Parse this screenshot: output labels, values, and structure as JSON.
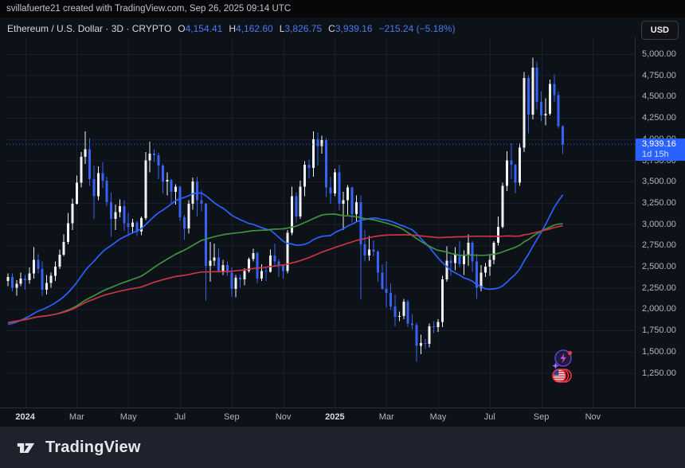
{
  "attribution": {
    "text": "svillafuerte21 created with TradingView.com, Sep 26, 2025 09:14 UTC"
  },
  "header": {
    "symbol_title": "Ethereum / U.S. Dollar · 3D · CRYPTO",
    "ohlc": [
      {
        "label": "O",
        "value": "4,154.41"
      },
      {
        "label": "H",
        "value": "4,162.60"
      },
      {
        "label": "L",
        "value": "3,826.75"
      },
      {
        "label": "C",
        "value": "3,939.16"
      }
    ],
    "change": "−215.24 (−5.18%)",
    "currency_button": "USD"
  },
  "price_scale": {
    "current_price_label": "3,939.16",
    "countdown": "1d 15h"
  },
  "footer": {
    "brand": "TradingView"
  },
  "colors": {
    "accent_blue": "#2962ff",
    "candle_up": "#f2f3f5",
    "candle_down": "#3763f4",
    "ma_fast": "#2962ff",
    "ma_mid": "#3f9142",
    "ma_slow": "#cc3344",
    "badge_bg": "#2962ff",
    "grid": "#1a1f2b",
    "axis_border": "#2a2e39"
  },
  "chart_data": {
    "type": "candlestick",
    "title": "Ethereum / U.S. Dollar",
    "timeframe": "3D",
    "exchange": "CRYPTO",
    "current_price": 3939.16,
    "y_axis": {
      "min": 1250,
      "max": 5000,
      "step": 250,
      "ticks": [
        {
          "v": 5000,
          "label": "5,000.00"
        },
        {
          "v": 4750,
          "label": "4,750.00"
        },
        {
          "v": 4500,
          "label": "4,500.00"
        },
        {
          "v": 4250,
          "label": "4,250.00"
        },
        {
          "v": 4000,
          "label": "4,000.00"
        },
        {
          "v": 3750,
          "label": "3,750.00"
        },
        {
          "v": 3500,
          "label": "3,500.00"
        },
        {
          "v": 3250,
          "label": "3,250.00"
        },
        {
          "v": 3000,
          "label": "3,000.00"
        },
        {
          "v": 2750,
          "label": "2,750.00"
        },
        {
          "v": 2500,
          "label": "2,500.00"
        },
        {
          "v": 2250,
          "label": "2,250.00"
        },
        {
          "v": 2000,
          "label": "2,000.00"
        },
        {
          "v": 1750,
          "label": "1,750.00"
        },
        {
          "v": 1500,
          "label": "1,500.00"
        },
        {
          "v": 1250,
          "label": "1,250.00"
        }
      ]
    },
    "x_axis": {
      "ticks": [
        {
          "label": "2024",
          "index": 4,
          "bold": true
        },
        {
          "label": "Mar",
          "index": 16
        },
        {
          "label": "May",
          "index": 28
        },
        {
          "label": "Jul",
          "index": 40
        },
        {
          "label": "Sep",
          "index": 52
        },
        {
          "label": "Nov",
          "index": 64
        },
        {
          "label": "2025",
          "index": 76,
          "bold": true
        },
        {
          "label": "Mar",
          "index": 88
        },
        {
          "label": "May",
          "index": 100
        },
        {
          "label": "Jul",
          "index": 112
        },
        {
          "label": "Sep",
          "index": 124
        },
        {
          "label": "Nov",
          "index": 136
        }
      ]
    },
    "indicators": [
      {
        "name": "ma-fast",
        "period": 30,
        "color": "#2962ff"
      },
      {
        "name": "ma-mid",
        "period": 60,
        "color": "#3f9142"
      },
      {
        "name": "ma-slow",
        "period": 100,
        "color": "#cc3344"
      }
    ],
    "ma_seed": [
      1800,
      1830,
      1850,
      1870,
      1860,
      1840,
      1850,
      1870,
      1890,
      1900,
      1910,
      1900,
      1880,
      1860,
      1900,
      1920,
      1930,
      1900,
      1880,
      1870,
      1840,
      1700,
      1660,
      1650,
      1680,
      1650,
      1630,
      1620,
      1630,
      1600,
      1590,
      1650,
      1560,
      1550,
      1600,
      1680,
      1750,
      1800,
      1850,
      1880,
      1900,
      2020,
      2050,
      2030,
      2100,
      2200,
      2250,
      2230
    ],
    "candles": [
      [
        2330,
        2420,
        2270,
        2380
      ],
      [
        2380,
        2420,
        2210,
        2250
      ],
      [
        2250,
        2340,
        2160,
        2300
      ],
      [
        2300,
        2430,
        2270,
        2360
      ],
      [
        2360,
        2400,
        2230,
        2340
      ],
      [
        2340,
        2490,
        2300,
        2420
      ],
      [
        2420,
        2730,
        2360,
        2580
      ],
      [
        2580,
        2650,
        2420,
        2470
      ],
      [
        2470,
        2560,
        2160,
        2230
      ],
      [
        2230,
        2400,
        2170,
        2310
      ],
      [
        2310,
        2430,
        2250,
        2390
      ],
      [
        2390,
        2560,
        2330,
        2500
      ],
      [
        2500,
        2700,
        2470,
        2640
      ],
      [
        2640,
        2880,
        2620,
        2790
      ],
      [
        2790,
        3130,
        2760,
        3010
      ],
      [
        3010,
        3300,
        2930,
        3240
      ],
      [
        3240,
        3570,
        3230,
        3490
      ],
      [
        3490,
        3850,
        3430,
        3790
      ],
      [
        3790,
        4090,
        3710,
        3880
      ],
      [
        3880,
        4010,
        3450,
        3530
      ],
      [
        3530,
        3690,
        3060,
        3330
      ],
      [
        3330,
        3680,
        3280,
        3600
      ],
      [
        3600,
        3730,
        3420,
        3510
      ],
      [
        3510,
        3560,
        3210,
        3260
      ],
      [
        3260,
        3370,
        2850,
        3060
      ],
      [
        3060,
        3230,
        2930,
        3140
      ],
      [
        3140,
        3290,
        3080,
        3210
      ],
      [
        3210,
        3280,
        2920,
        3010
      ],
      [
        3010,
        3130,
        2860,
        2970
      ],
      [
        2970,
        3060,
        2890,
        3020
      ],
      [
        3020,
        3040,
        2860,
        2910
      ],
      [
        2910,
        3090,
        2870,
        3070
      ],
      [
        3070,
        3850,
        3050,
        3750
      ],
      [
        3750,
        3970,
        3610,
        3830
      ],
      [
        3830,
        3880,
        3730,
        3810
      ],
      [
        3810,
        3840,
        3530,
        3690
      ],
      [
        3690,
        3710,
        3360,
        3500
      ],
      [
        3500,
        3610,
        3340,
        3520
      ],
      [
        3520,
        3530,
        3240,
        3380
      ],
      [
        3380,
        3470,
        3230,
        3440
      ],
      [
        3440,
        3450,
        3040,
        3080
      ],
      [
        3080,
        3110,
        2820,
        2950
      ],
      [
        2950,
        3280,
        2890,
        3240
      ],
      [
        3240,
        3550,
        3170,
        3500
      ],
      [
        3500,
        3560,
        3090,
        3280
      ],
      [
        3280,
        3400,
        3150,
        3240
      ],
      [
        3240,
        3250,
        2100,
        2510
      ],
      [
        2510,
        2790,
        2320,
        2570
      ],
      [
        2570,
        2770,
        2510,
        2610
      ],
      [
        2610,
        2710,
        2430,
        2440
      ],
      [
        2440,
        2580,
        2400,
        2520
      ],
      [
        2520,
        2560,
        2390,
        2430
      ],
      [
        2430,
        2490,
        2150,
        2240
      ],
      [
        2240,
        2400,
        2140,
        2370
      ],
      [
        2370,
        2400,
        2250,
        2350
      ],
      [
        2350,
        2480,
        2280,
        2450
      ],
      [
        2450,
        2610,
        2430,
        2590
      ],
      [
        2590,
        2710,
        2560,
        2660
      ],
      [
        2660,
        2680,
        2310,
        2360
      ],
      [
        2360,
        2530,
        2330,
        2450
      ],
      [
        2450,
        2500,
        2330,
        2440
      ],
      [
        2440,
        2700,
        2430,
        2630
      ],
      [
        2630,
        2770,
        2510,
        2560
      ],
      [
        2560,
        2590,
        2380,
        2510
      ],
      [
        2510,
        2520,
        2360,
        2450
      ],
      [
        2450,
        2930,
        2420,
        2900
      ],
      [
        2900,
        3440,
        2870,
        3330
      ],
      [
        3330,
        3370,
        3020,
        3090
      ],
      [
        3090,
        3510,
        3060,
        3440
      ],
      [
        3440,
        3740,
        3330,
        3700
      ],
      [
        3700,
        3760,
        3540,
        3660
      ],
      [
        3660,
        4090,
        3560,
        4000
      ],
      [
        4000,
        4080,
        3690,
        3920
      ],
      [
        3920,
        4040,
        3830,
        3990
      ],
      [
        3990,
        4010,
        3320,
        3430
      ],
      [
        3430,
        3560,
        3240,
        3360
      ],
      [
        3360,
        3650,
        3330,
        3610
      ],
      [
        3610,
        3700,
        3160,
        3240
      ],
      [
        3240,
        3380,
        2930,
        3280
      ],
      [
        3280,
        3460,
        3110,
        3430
      ],
      [
        3430,
        3440,
        3020,
        3120
      ],
      [
        3120,
        3340,
        3020,
        3260
      ],
      [
        3260,
        3340,
        2110,
        2760
      ],
      [
        2760,
        2930,
        2560,
        2630
      ],
      [
        2630,
        2860,
        2570,
        2700
      ],
      [
        2700,
        2810,
        2620,
        2680
      ],
      [
        2680,
        2690,
        2320,
        2430
      ],
      [
        2430,
        2530,
        2230,
        2240
      ],
      [
        2240,
        2560,
        2020,
        2190
      ],
      [
        2190,
        2300,
        1990,
        2030
      ],
      [
        2030,
        2170,
        1800,
        1910
      ],
      [
        1910,
        1970,
        1860,
        1920
      ],
      [
        1920,
        2120,
        1880,
        2090
      ],
      [
        2090,
        2110,
        1790,
        1830
      ],
      [
        1830,
        1940,
        1760,
        1810
      ],
      [
        1810,
        1840,
        1380,
        1570
      ],
      [
        1570,
        1700,
        1470,
        1600
      ],
      [
        1600,
        1650,
        1530,
        1590
      ],
      [
        1590,
        1830,
        1550,
        1800
      ],
      [
        1800,
        1860,
        1720,
        1790
      ],
      [
        1790,
        1880,
        1730,
        1850
      ],
      [
        1850,
        2390,
        1790,
        2350
      ],
      [
        2350,
        2740,
        2320,
        2570
      ],
      [
        2570,
        2630,
        2390,
        2540
      ],
      [
        2540,
        2730,
        2460,
        2640
      ],
      [
        2640,
        2800,
        2490,
        2530
      ],
      [
        2530,
        2690,
        2400,
        2630
      ],
      [
        2630,
        2880,
        2510,
        2780
      ],
      [
        2780,
        2800,
        2440,
        2560
      ],
      [
        2560,
        2650,
        2120,
        2250
      ],
      [
        2250,
        2520,
        2210,
        2430
      ],
      [
        2430,
        2540,
        2380,
        2500
      ],
      [
        2500,
        2640,
        2390,
        2580
      ],
      [
        2580,
        2800,
        2530,
        2780
      ],
      [
        2780,
        3090,
        2750,
        2970
      ],
      [
        2970,
        3490,
        2950,
        3450
      ],
      [
        3450,
        3860,
        3390,
        3750
      ],
      [
        3750,
        3950,
        3530,
        3700
      ],
      [
        3700,
        3710,
        3360,
        3490
      ],
      [
        3490,
        3950,
        3450,
        3900
      ],
      [
        3900,
        4790,
        3850,
        4720
      ],
      [
        4720,
        4750,
        4070,
        4290
      ],
      [
        4290,
        4960,
        4230,
        4840
      ],
      [
        4840,
        4910,
        4350,
        4440
      ],
      [
        4440,
        4560,
        4210,
        4280
      ],
      [
        4280,
        4480,
        4160,
        4300
      ],
      [
        4300,
        4700,
        4280,
        4650
      ],
      [
        4650,
        4760,
        4440,
        4520
      ],
      [
        4520,
        4560,
        4130,
        4154
      ],
      [
        4154,
        4163,
        3827,
        3939
      ]
    ]
  }
}
